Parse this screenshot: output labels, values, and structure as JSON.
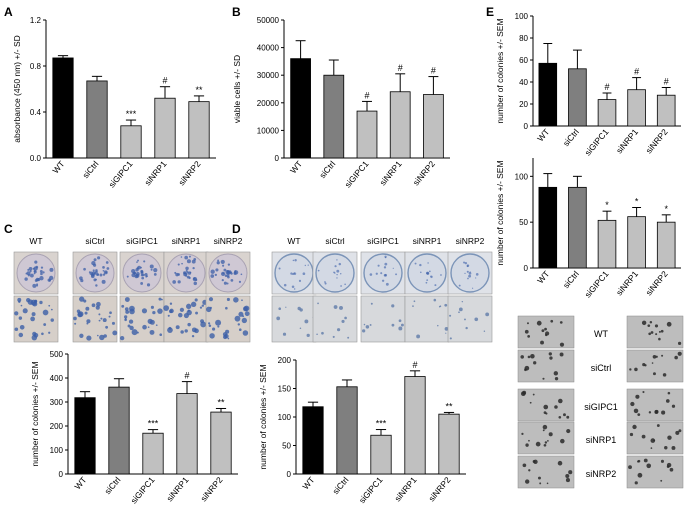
{
  "chart_data": [
    {
      "panel": "A",
      "type": "bar",
      "categories": [
        "WT",
        "siCtrl",
        "siGIPC1",
        "siNRP1",
        "siNRP2"
      ],
      "values": [
        0.87,
        0.67,
        0.28,
        0.52,
        0.49
      ],
      "errors": [
        0.02,
        0.04,
        0.05,
        0.1,
        0.05
      ],
      "annotations": [
        "",
        "",
        "***",
        "#",
        "**"
      ],
      "ylabel": "absorbance (450 nm) +/- SD",
      "ylim": [
        0,
        1.2
      ],
      "yticks": [
        0,
        0.4,
        0.8,
        1.2
      ],
      "ytick_labels": [
        "0.0",
        "0.4",
        "0.8",
        "1.2"
      ],
      "bar_colors": [
        "#000000",
        "#7f7f7f",
        "#c0c0c0",
        "#c0c0c0",
        "#c0c0c0"
      ]
    },
    {
      "panel": "B",
      "type": "bar",
      "categories": [
        "WT",
        "siCtrl",
        "siGIPC1",
        "siNRP1",
        "siNRP2"
      ],
      "values": [
        36000,
        30000,
        17000,
        24000,
        23000
      ],
      "errors": [
        6500,
        5500,
        3500,
        6500,
        6500
      ],
      "annotations": [
        "",
        "",
        "#",
        "#",
        "#"
      ],
      "ylabel": "viable cells +/- SD",
      "ylim": [
        0,
        50000
      ],
      "yticks": [
        0,
        10000,
        20000,
        30000,
        40000,
        50000
      ],
      "ytick_labels": [
        "0",
        "10000",
        "20000",
        "30000",
        "40000",
        "50000"
      ],
      "bar_colors": [
        "#000000",
        "#7f7f7f",
        "#c0c0c0",
        "#c0c0c0",
        "#c0c0c0"
      ]
    },
    {
      "panel": "C",
      "type": "bar",
      "categories": [
        "WT",
        "siCtrl",
        "siGIPC1",
        "siNRP1",
        "siNRP2"
      ],
      "values": [
        318,
        362,
        170,
        335,
        258
      ],
      "errors": [
        25,
        35,
        15,
        50,
        15
      ],
      "annotations": [
        "",
        "",
        "***",
        "#",
        "**"
      ],
      "ylabel": "number of colonies +/- SEM",
      "ylim": [
        0,
        500
      ],
      "yticks": [
        0,
        100,
        200,
        300,
        400,
        500
      ],
      "ytick_labels": [
        "0",
        "100",
        "200",
        "300",
        "400",
        "500"
      ],
      "bar_colors": [
        "#000000",
        "#7f7f7f",
        "#c0c0c0",
        "#c0c0c0",
        "#c0c0c0"
      ]
    },
    {
      "panel": "D",
      "type": "bar",
      "categories": [
        "WT",
        "siCtrl",
        "siGlPC1",
        "siNRP1",
        "siNRP2"
      ],
      "values": [
        118,
        153,
        68,
        171,
        105
      ],
      "errors": [
        8,
        12,
        10,
        10,
        3
      ],
      "annotations": [
        "",
        "",
        "***",
        "#",
        "**"
      ],
      "ylabel": "number of colonies +/- SEM",
      "ylim": [
        0,
        200
      ],
      "yticks": [
        0,
        50,
        100,
        150,
        200
      ],
      "ytick_labels": [
        "0",
        "50",
        "100",
        "150",
        "200"
      ],
      "bar_colors": [
        "#000000",
        "#7f7f7f",
        "#c0c0c0",
        "#c0c0c0",
        "#c0c0c0"
      ]
    },
    {
      "panel": "E-top",
      "type": "bar",
      "categories": [
        "WT",
        "siCtrl",
        "siGIPC1",
        "siNRP1",
        "siNRP2"
      ],
      "values": [
        57,
        52,
        24,
        33,
        28
      ],
      "errors": [
        18,
        17,
        6,
        11,
        7
      ],
      "annotations": [
        "",
        "",
        "#",
        "#",
        "#"
      ],
      "ylabel": "number of colonies +/- SEM",
      "ylim": [
        0,
        100
      ],
      "yticks": [
        0,
        20,
        40,
        60,
        80,
        100
      ],
      "ytick_labels": [
        "0",
        "20",
        "40",
        "60",
        "80",
        "100"
      ],
      "bar_colors": [
        "#000000",
        "#7f7f7f",
        "#c0c0c0",
        "#c0c0c0",
        "#c0c0c0"
      ]
    },
    {
      "panel": "E-middle",
      "type": "bar",
      "categories": [
        "WT",
        "siCtrl",
        "siGIPC1",
        "siNRP1",
        "siNRP2"
      ],
      "values": [
        88,
        88,
        52,
        56,
        50
      ],
      "errors": [
        15,
        12,
        10,
        10,
        8
      ],
      "annotations": [
        "",
        "",
        "*",
        "*",
        "*"
      ],
      "ylabel": "number of colonies +/- SEM",
      "ylim": [
        0,
        120
      ],
      "yticks": [
        0,
        50,
        100
      ],
      "ytick_labels": [
        "0",
        "50",
        "100"
      ],
      "bar_colors": [
        "#000000",
        "#7f7f7f",
        "#c0c0c0",
        "#c0c0c0",
        "#c0c0c0"
      ]
    }
  ],
  "panel_letters": [
    "A",
    "B",
    "C",
    "D",
    "E"
  ],
  "panel_C_well_labels": [
    "WT",
    "siCtrl",
    "siGIPC1",
    "siNRP1",
    "siNRP2"
  ],
  "panel_D_well_labels": [
    "WT",
    "siCtrl",
    "siGIPC1",
    "siNRP1",
    "siNRP2"
  ],
  "panel_E_image_labels": [
    "WT",
    "siCtrl",
    "siGIPC1",
    "siNRP1",
    "siNRP2"
  ],
  "colors": {
    "wt_bar": "#000000",
    "ctrl_bar": "#7f7f7f",
    "knockdown_bar": "#c0c0c0",
    "colony_stain": "#3c5fa8",
    "well_background": "#d9d3cf",
    "micro_background": "#bdbdbd"
  }
}
